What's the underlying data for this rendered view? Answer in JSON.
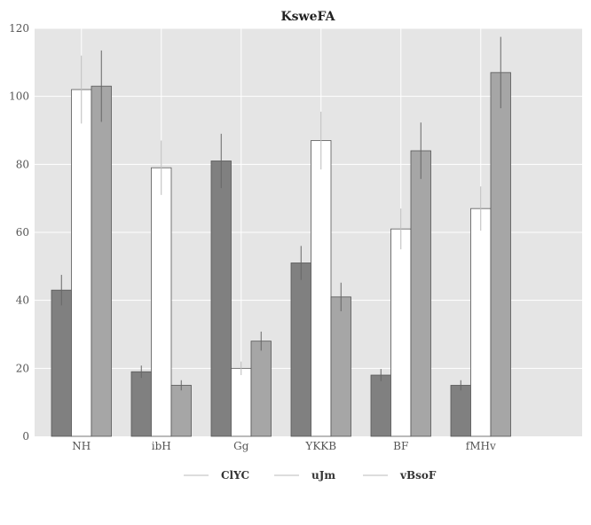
{
  "chart_data": {
    "type": "bar",
    "title": "KsweFA",
    "xlabel": "",
    "ylabel": "",
    "categories": [
      "NH",
      "ibH",
      "Gg",
      "YKKB",
      "BF",
      "fMHv"
    ],
    "series": [
      {
        "name": "ClYC",
        "color": "#808080",
        "values": [
          43,
          19,
          81,
          51,
          18,
          15
        ],
        "errors": [
          4.5,
          1.8,
          8,
          5,
          1.8,
          1.5
        ]
      },
      {
        "name": "uJm",
        "color": "#ffffff",
        "values": [
          102,
          79,
          20,
          87,
          61,
          67
        ],
        "errors": [
          10,
          8,
          2,
          8.5,
          6,
          6.5
        ]
      },
      {
        "name": "vBsoF",
        "color": "#a6a6a6",
        "values": [
          103,
          15,
          28,
          41,
          84,
          107
        ],
        "errors": [
          10.5,
          1.5,
          2.8,
          4.2,
          8.3,
          10.5
        ]
      }
    ],
    "ylim": [
      0,
      120
    ],
    "yticks": [
      0,
      20,
      40,
      60,
      80,
      100,
      120
    ],
    "grid": true,
    "error_bars": true,
    "legend_position": "bottom-center"
  }
}
